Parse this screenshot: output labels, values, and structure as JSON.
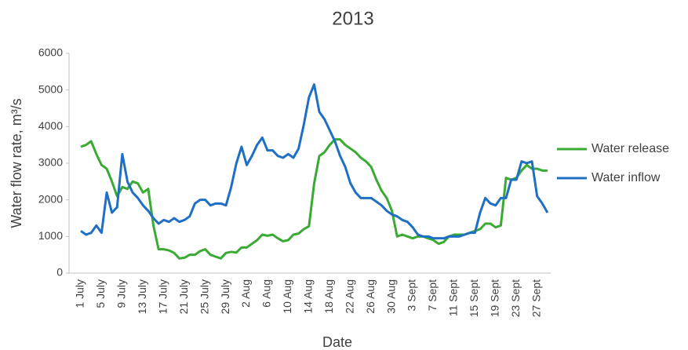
{
  "chart_data": {
    "type": "line",
    "title": "2013",
    "x_label": "Date",
    "y_label": "Water flow rate, m³/s",
    "categories": [
      "1 July",
      null,
      null,
      null,
      "5 July",
      null,
      null,
      null,
      "9 July",
      null,
      null,
      null,
      "13 July",
      null,
      null,
      null,
      "17 July",
      null,
      null,
      null,
      "21 July",
      null,
      null,
      null,
      "25 July",
      null,
      null,
      null,
      "29 July",
      null,
      null,
      null,
      "2 Aug",
      null,
      null,
      null,
      "6 Aug",
      null,
      null,
      null,
      "10 Aug",
      null,
      null,
      null,
      "14 Aug",
      null,
      null,
      null,
      "18 Aug",
      null,
      null,
      null,
      "22 Aug",
      null,
      null,
      null,
      "26 Aug",
      null,
      null,
      null,
      "30 Aug",
      null,
      null,
      null,
      "3 Sept",
      null,
      null,
      null,
      "7 Sept",
      null,
      null,
      null,
      "11 Sept",
      null,
      null,
      null,
      "15 Sept",
      null,
      null,
      null,
      "19 Sept",
      null,
      null,
      null,
      "23 Sept",
      null,
      null,
      null,
      "27 Sept",
      null,
      null
    ],
    "series": [
      {
        "name": "Water release",
        "color": "#3aaa35",
        "values": [
          3450,
          3500,
          3600,
          3250,
          2950,
          2850,
          2500,
          2100,
          2350,
          2300,
          2500,
          2450,
          2200,
          2300,
          1300,
          650,
          650,
          620,
          550,
          400,
          420,
          500,
          500,
          600,
          650,
          500,
          450,
          400,
          550,
          580,
          560,
          700,
          700,
          800,
          900,
          1050,
          1020,
          1050,
          950,
          870,
          900,
          1050,
          1080,
          1200,
          1280,
          2450,
          3200,
          3300,
          3500,
          3650,
          3650,
          3500,
          3400,
          3300,
          3150,
          3050,
          2900,
          2550,
          2250,
          2050,
          1700,
          1000,
          1050,
          1000,
          950,
          1000,
          1000,
          950,
          900,
          800,
          850,
          1000,
          1050,
          1050,
          1050,
          1100,
          1150,
          1200,
          1350,
          1350,
          1250,
          1300,
          2600,
          2550,
          2600,
          2800,
          2950,
          2850,
          2850,
          2800,
          2800
        ]
      },
      {
        "name": "Water inflow",
        "color": "#1f6fc5",
        "values": [
          1150,
          1050,
          1100,
          1300,
          1100,
          2200,
          1650,
          1800,
          3250,
          2500,
          2200,
          2050,
          1850,
          1700,
          1500,
          1350,
          1450,
          1400,
          1500,
          1400,
          1450,
          1550,
          1900,
          2000,
          2000,
          1850,
          1900,
          1900,
          1850,
          2350,
          3000,
          3450,
          2950,
          3200,
          3500,
          3700,
          3350,
          3350,
          3200,
          3150,
          3250,
          3150,
          3400,
          4050,
          4800,
          5150,
          4400,
          4200,
          3900,
          3600,
          3200,
          2900,
          2450,
          2200,
          2050,
          2050,
          2050,
          1950,
          1850,
          1700,
          1600,
          1550,
          1450,
          1400,
          1250,
          1050,
          1000,
          1000,
          950,
          950,
          950,
          1000,
          1000,
          1000,
          1050,
          1100,
          1100,
          1650,
          2050,
          1900,
          1850,
          2050,
          2050,
          2550,
          2550,
          3050,
          3000,
          3050,
          2100,
          1900,
          1650
        ]
      }
    ],
    "ylim": [
      0,
      6000
    ],
    "yticks": [
      0,
      1000,
      2000,
      3000,
      4000,
      5000,
      6000
    ],
    "legend": "right"
  }
}
